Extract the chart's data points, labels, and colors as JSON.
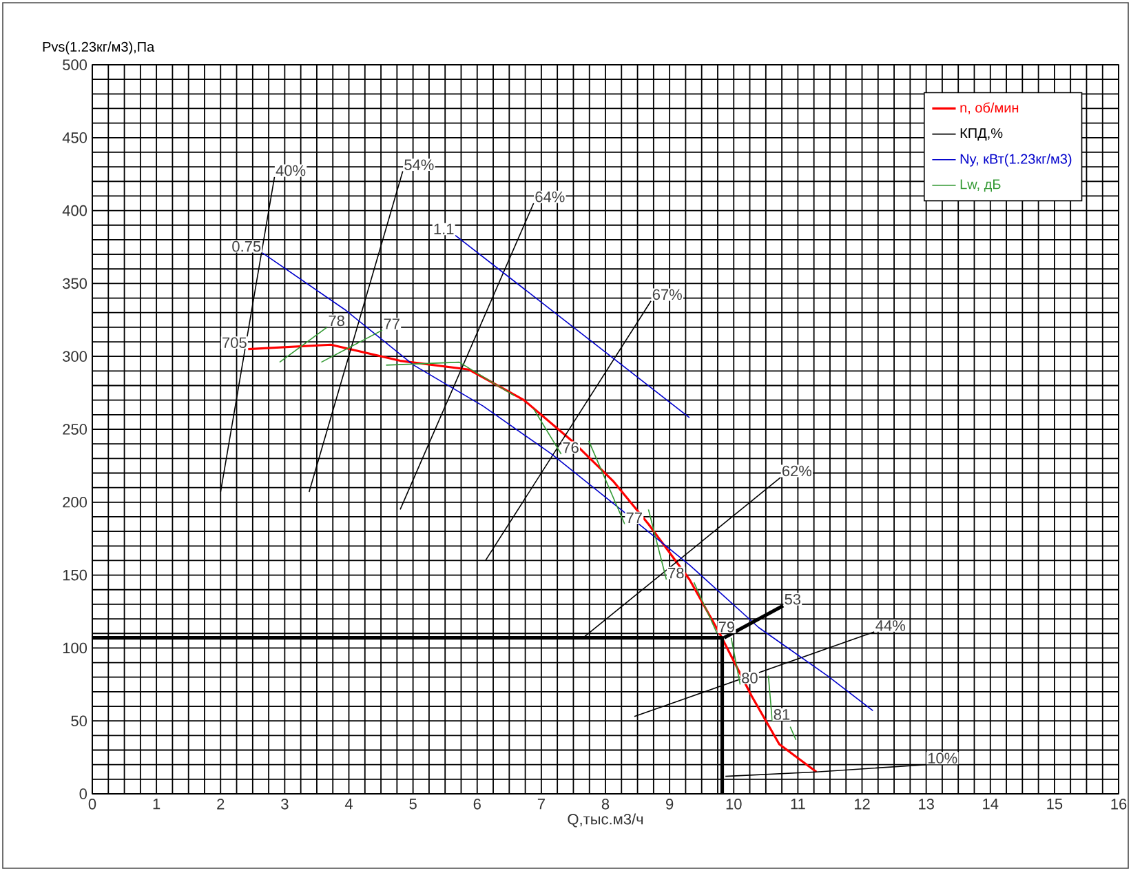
{
  "chart_data": {
    "type": "line",
    "xlabel": "Q,тыс.м3/ч",
    "ylabel": "Pvs(1.23кг/м3),Па",
    "xlim": [
      0,
      16
    ],
    "ylim": [
      0,
      500
    ],
    "xticks": [
      0,
      1,
      2,
      3,
      4,
      5,
      6,
      7,
      8,
      9,
      10,
      11,
      12,
      13,
      14,
      15,
      16
    ],
    "yticks": [
      0,
      50,
      100,
      150,
      200,
      250,
      300,
      350,
      400,
      450,
      500
    ],
    "grid": true,
    "legend": "top right",
    "marker": "none",
    "line_style": "solid",
    "series": [
      {
        "name": "n, об/мин",
        "color": "#ff0000",
        "x": [
          2.43,
          3.72,
          4.8,
          5.87,
          6.73,
          7.48,
          8.13,
          8.67,
          9.31,
          9.78,
          10.28,
          10.71,
          11.29
        ],
        "values": [
          305,
          308,
          297,
          291,
          270,
          242,
          214,
          185,
          147,
          110,
          67,
          34,
          15
        ]
      },
      {
        "name": "КПД,%",
        "color": "#000000",
        "x": [
          2.0,
          2.84,
          null,
          3.38,
          4.84,
          null,
          4.8,
          6.88,
          null,
          6.13,
          8.71,
          null,
          7.68,
          10.73,
          null,
          8.45,
          12.19,
          null,
          9.87,
          11.29,
          13.0
        ],
        "values": [
          207,
          423,
          null,
          207,
          427,
          null,
          195,
          405,
          null,
          160,
          338,
          null,
          108,
          217,
          null,
          53,
          111,
          null,
          12,
          15,
          20
        ]
      },
      {
        "name": "Ny, кВт(1.23кг/м3)",
        "color": "#0000cc",
        "x": [
          2.65,
          3.94,
          5.01,
          6.09,
          7.16,
          8.24,
          9.31,
          10.39,
          11.46,
          12.17,
          null,
          5.66,
          7.5,
          9.31
        ],
        "values": [
          371,
          332,
          294,
          266,
          233,
          195,
          157,
          114,
          81,
          57,
          null,
          383,
          320,
          258
        ]
      },
      {
        "name": "Lw, дБ",
        "color": "#339933",
        "x": [
          2.92,
          3.66,
          null,
          3.57,
          4.52,
          null,
          4.58,
          5.72,
          6.58,
          null,
          6.88,
          7.31,
          null,
          7.74,
          8.3,
          null,
          8.67,
          8.95,
          null,
          9.38,
          9.74,
          null,
          9.96,
          10.1,
          null,
          10.54,
          10.6,
          null,
          10.88,
          10.97
        ],
        "values": [
          296,
          320,
          null,
          296,
          318,
          null,
          294,
          296,
          273,
          null,
          264,
          233,
          null,
          242,
          185,
          null,
          195,
          147,
          null,
          145,
          110,
          null,
          107,
          75,
          null,
          81,
          50,
          null,
          46,
          37
        ]
      },
      {
        "color": "#000000",
        "x": [
          0,
          9.82,
          9.82,
          null,
          9.85,
          10.77
        ],
        "values": [
          107,
          107,
          0,
          null,
          107,
          129
        ]
      }
    ],
    "annotations": [
      {
        "text": "40%",
        "x": 2.84,
        "y": 423
      },
      {
        "text": "54%",
        "x": 4.84,
        "y": 427
      },
      {
        "text": "64%",
        "x": 6.88,
        "y": 405
      },
      {
        "text": "67%",
        "x": 8.71,
        "y": 338
      },
      {
        "text": "62%",
        "x": 10.73,
        "y": 217
      },
      {
        "text": "53",
        "x": 10.77,
        "y": 129
      },
      {
        "text": "44%",
        "x": 12.19,
        "y": 111
      },
      {
        "text": "10%",
        "x": 13.0,
        "y": 20
      },
      {
        "text": "705",
        "x": 2.43,
        "y": 305
      },
      {
        "text": "0.75",
        "x": 2.65,
        "y": 371
      },
      {
        "text": "1.1",
        "x": 5.66,
        "y": 383
      },
      {
        "text": "78",
        "x": 3.66,
        "y": 320
      },
      {
        "text": "77",
        "x": 4.52,
        "y": 318
      },
      {
        "text": "76",
        "x": 7.31,
        "y": 233
      },
      {
        "text": "77",
        "x": 8.3,
        "y": 185
      },
      {
        "text": "78",
        "x": 8.95,
        "y": 147
      },
      {
        "text": "79",
        "x": 9.74,
        "y": 110
      },
      {
        "text": "80",
        "x": 10.1,
        "y": 75
      },
      {
        "text": "81",
        "x": 10.6,
        "y": 50
      }
    ]
  }
}
